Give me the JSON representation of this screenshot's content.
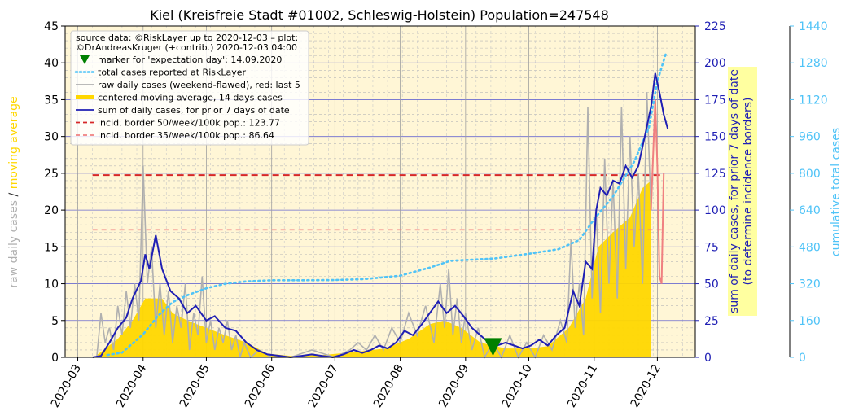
{
  "chart_data": {
    "type": "line",
    "title": "Kiel (Kreisfreie Stadt #01002, Schleswig-Holstein) Population=247548",
    "x_ticks": [
      "2020-03",
      "2020-04",
      "2020-05",
      "2020-06",
      "2020-07",
      "2020-08",
      "2020-09",
      "2020-10",
      "2020-11",
      "2020-12"
    ],
    "x_range": [
      "2020-02-24",
      "2020-12-19"
    ],
    "left_axis": {
      "range": [
        0,
        45
      ],
      "ticks": [
        "0",
        "5",
        "10",
        "15",
        "20",
        "25",
        "30",
        "35",
        "40",
        "45"
      ],
      "label_parts": [
        {
          "text": "raw daily cases",
          "color": "#b0b0b0"
        },
        {
          "text": "/",
          "color": "#333333"
        },
        {
          "text": "moving average",
          "color": "#ffd700"
        }
      ]
    },
    "right_axis": {
      "range": [
        0,
        225
      ],
      "ticks": [
        "0",
        "25",
        "50",
        "75",
        "100",
        "125",
        "150",
        "175",
        "200",
        "225"
      ],
      "label_lines": [
        "sum of daily cases, for prior 7 days of date",
        "(to determine incidence borders)"
      ],
      "color": "#1f1fb4",
      "box_color": "#ffffa0"
    },
    "far_right_axis": {
      "range": [
        0,
        1440
      ],
      "ticks": [
        "0",
        "160",
        "320",
        "480",
        "640",
        "800",
        "960",
        "1120",
        "1280",
        "1440"
      ],
      "label": "cumulative total cases",
      "color": "#4fc3f7"
    },
    "legend": {
      "placement": "top-left",
      "source_lines": [
        "source data: ©RiskLayer up to 2020-12-03 – plot:",
        "©DrAndreasKruger (+contrib.) 2020-12-03 04:00"
      ],
      "entries": [
        {
          "label": "marker for 'expectation day': 14.09.2020",
          "kind": "marker",
          "color": "#008000"
        },
        {
          "label": "total cases reported at RiskLayer",
          "kind": "dotted",
          "color": "#4fc3f7"
        },
        {
          "label": "raw daily cases (weekend-flawed), red: last 5",
          "kind": "line",
          "color": "#b0b0b0"
        },
        {
          "label": "centered moving average, 14 days cases",
          "kind": "thick",
          "color": "#ffd700"
        },
        {
          "label": "sum of daily cases, for prior 7 days of date",
          "kind": "line",
          "color": "#1f1fb4"
        },
        {
          "label": "incid. border 50/week/100k pop.: 123.77",
          "kind": "dashed",
          "color": "#d62728"
        },
        {
          "label": "incid. border 35/week/100k pop.: 86.64",
          "kind": "dashed",
          "color": "#f08080"
        }
      ]
    },
    "series": [
      {
        "name": "sum of daily cases, for prior 7 days of date",
        "axis": "right",
        "color": "#1f1fb4",
        "points": [
          [
            "2020-03-08",
            0
          ],
          [
            "2020-03-12",
            1
          ],
          [
            "2020-03-16",
            10
          ],
          [
            "2020-03-20",
            20
          ],
          [
            "2020-03-24",
            27
          ],
          [
            "2020-03-27",
            40
          ],
          [
            "2020-03-31",
            52
          ],
          [
            "2020-04-02",
            70
          ],
          [
            "2020-04-04",
            60
          ],
          [
            "2020-04-07",
            83
          ],
          [
            "2020-04-10",
            60
          ],
          [
            "2020-04-14",
            45
          ],
          [
            "2020-04-18",
            40
          ],
          [
            "2020-04-22",
            30
          ],
          [
            "2020-04-26",
            35
          ],
          [
            "2020-05-01",
            25
          ],
          [
            "2020-05-05",
            28
          ],
          [
            "2020-05-10",
            20
          ],
          [
            "2020-05-15",
            18
          ],
          [
            "2020-05-20",
            10
          ],
          [
            "2020-05-25",
            5
          ],
          [
            "2020-05-30",
            2
          ],
          [
            "2020-06-05",
            1
          ],
          [
            "2020-06-10",
            0
          ],
          [
            "2020-06-15",
            1
          ],
          [
            "2020-06-20",
            2
          ],
          [
            "2020-06-25",
            1
          ],
          [
            "2020-06-30",
            0
          ],
          [
            "2020-07-05",
            2
          ],
          [
            "2020-07-10",
            5
          ],
          [
            "2020-07-14",
            3
          ],
          [
            "2020-07-18",
            5
          ],
          [
            "2020-07-22",
            8
          ],
          [
            "2020-07-26",
            6
          ],
          [
            "2020-07-30",
            10
          ],
          [
            "2020-08-03",
            18
          ],
          [
            "2020-08-07",
            15
          ],
          [
            "2020-08-11",
            22
          ],
          [
            "2020-08-15",
            30
          ],
          [
            "2020-08-19",
            38
          ],
          [
            "2020-08-23",
            30
          ],
          [
            "2020-08-27",
            35
          ],
          [
            "2020-08-31",
            28
          ],
          [
            "2020-09-04",
            20
          ],
          [
            "2020-09-08",
            15
          ],
          [
            "2020-09-12",
            10
          ],
          [
            "2020-09-16",
            8
          ],
          [
            "2020-09-20",
            10
          ],
          [
            "2020-09-24",
            8
          ],
          [
            "2020-09-28",
            6
          ],
          [
            "2020-10-02",
            8
          ],
          [
            "2020-10-06",
            12
          ],
          [
            "2020-10-10",
            8
          ],
          [
            "2020-10-14",
            15
          ],
          [
            "2020-10-18",
            20
          ],
          [
            "2020-10-22",
            45
          ],
          [
            "2020-10-25",
            35
          ],
          [
            "2020-10-28",
            65
          ],
          [
            "2020-10-31",
            60
          ],
          [
            "2020-11-02",
            100
          ],
          [
            "2020-11-04",
            115
          ],
          [
            "2020-11-07",
            110
          ],
          [
            "2020-11-10",
            120
          ],
          [
            "2020-11-13",
            118
          ],
          [
            "2020-11-16",
            130
          ],
          [
            "2020-11-19",
            122
          ],
          [
            "2020-11-22",
            130
          ],
          [
            "2020-11-25",
            150
          ],
          [
            "2020-11-28",
            170
          ],
          [
            "2020-11-30",
            193
          ],
          [
            "2020-12-02",
            180
          ],
          [
            "2020-12-04",
            165
          ],
          [
            "2020-12-06",
            155
          ]
        ]
      },
      {
        "name": "total cases reported at RiskLayer",
        "axis": "far_right",
        "color": "#4fc3f7",
        "points": [
          [
            "2020-03-15",
            10
          ],
          [
            "2020-03-22",
            20
          ],
          [
            "2020-04-01",
            100
          ],
          [
            "2020-04-08",
            180
          ],
          [
            "2020-04-15",
            240
          ],
          [
            "2020-04-22",
            270
          ],
          [
            "2020-05-01",
            300
          ],
          [
            "2020-05-10",
            320
          ],
          [
            "2020-05-20",
            330
          ],
          [
            "2020-06-01",
            335
          ],
          [
            "2020-06-15",
            335
          ],
          [
            "2020-07-01",
            336
          ],
          [
            "2020-07-15",
            340
          ],
          [
            "2020-08-01",
            355
          ],
          [
            "2020-08-15",
            390
          ],
          [
            "2020-08-25",
            420
          ],
          [
            "2020-09-05",
            425
          ],
          [
            "2020-09-15",
            430
          ],
          [
            "2020-10-01",
            450
          ],
          [
            "2020-10-15",
            470
          ],
          [
            "2020-10-25",
            510
          ],
          [
            "2020-11-01",
            600
          ],
          [
            "2020-11-10",
            700
          ],
          [
            "2020-11-20",
            850
          ],
          [
            "2020-11-27",
            1000
          ],
          [
            "2020-12-01",
            1200
          ],
          [
            "2020-12-05",
            1320
          ]
        ]
      }
    ],
    "bars": {
      "name": "centered moving average, 14 days cases",
      "axis": "left",
      "color": "#ffd700",
      "points": [
        [
          "2020-03-10",
          0.3
        ],
        [
          "2020-03-20",
          2.5
        ],
        [
          "2020-03-27",
          5
        ],
        [
          "2020-04-02",
          8
        ],
        [
          "2020-04-10",
          8
        ],
        [
          "2020-04-15",
          6
        ],
        [
          "2020-04-22",
          5
        ],
        [
          "2020-05-01",
          4
        ],
        [
          "2020-05-10",
          3
        ],
        [
          "2020-05-20",
          2
        ],
        [
          "2020-05-30",
          0.5
        ],
        [
          "2020-06-10",
          0.2
        ],
        [
          "2020-06-25",
          0.3
        ],
        [
          "2020-07-10",
          0.7
        ],
        [
          "2020-07-25",
          1.2
        ],
        [
          "2020-08-05",
          2.5
        ],
        [
          "2020-08-15",
          4.5
        ],
        [
          "2020-08-22",
          5
        ],
        [
          "2020-08-30",
          4
        ],
        [
          "2020-09-08",
          2
        ],
        [
          "2020-09-20",
          1.2
        ],
        [
          "2020-10-01",
          1.2
        ],
        [
          "2020-10-10",
          1.5
        ],
        [
          "2020-10-20",
          4
        ],
        [
          "2020-10-28",
          8
        ],
        [
          "2020-11-03",
          15
        ],
        [
          "2020-11-10",
          17
        ],
        [
          "2020-11-18",
          19
        ],
        [
          "2020-11-24",
          23
        ],
        [
          "2020-11-28",
          24
        ]
      ]
    },
    "raw_daily": {
      "name": "raw daily cases (weekend-flawed), red: last 5",
      "axis": "left",
      "color": "#b0b0b0",
      "last_color": "#f08080",
      "points": [
        [
          "2020-03-10",
          0
        ],
        [
          "2020-03-12",
          6
        ],
        [
          "2020-03-14",
          2
        ],
        [
          "2020-03-16",
          4
        ],
        [
          "2020-03-18",
          1
        ],
        [
          "2020-03-20",
          7
        ],
        [
          "2020-03-22",
          3
        ],
        [
          "2020-03-24",
          9
        ],
        [
          "2020-03-26",
          4
        ],
        [
          "2020-03-28",
          10
        ],
        [
          "2020-03-30",
          5
        ],
        [
          "2020-04-01",
          26
        ],
        [
          "2020-04-03",
          10
        ],
        [
          "2020-04-05",
          15
        ],
        [
          "2020-04-07",
          4
        ],
        [
          "2020-04-09",
          10
        ],
        [
          "2020-04-11",
          3
        ],
        [
          "2020-04-13",
          9
        ],
        [
          "2020-04-15",
          2
        ],
        [
          "2020-04-17",
          7
        ],
        [
          "2020-04-19",
          4
        ],
        [
          "2020-04-21",
          10
        ],
        [
          "2020-04-23",
          1
        ],
        [
          "2020-04-25",
          6
        ],
        [
          "2020-04-27",
          3
        ],
        [
          "2020-04-29",
          11
        ],
        [
          "2020-05-01",
          2
        ],
        [
          "2020-05-03",
          5
        ],
        [
          "2020-05-05",
          1
        ],
        [
          "2020-05-07",
          4
        ],
        [
          "2020-05-09",
          2
        ],
        [
          "2020-05-11",
          5
        ],
        [
          "2020-05-13",
          1
        ],
        [
          "2020-05-15",
          3
        ],
        [
          "2020-05-17",
          0
        ],
        [
          "2020-05-19",
          2
        ],
        [
          "2020-05-22",
          0
        ],
        [
          "2020-05-26",
          1
        ],
        [
          "2020-06-01",
          0
        ],
        [
          "2020-06-10",
          0
        ],
        [
          "2020-06-20",
          1
        ],
        [
          "2020-07-01",
          0
        ],
        [
          "2020-07-08",
          1
        ],
        [
          "2020-07-12",
          2
        ],
        [
          "2020-07-16",
          1
        ],
        [
          "2020-07-20",
          3
        ],
        [
          "2020-07-24",
          1
        ],
        [
          "2020-07-28",
          4
        ],
        [
          "2020-08-01",
          2
        ],
        [
          "2020-08-05",
          6
        ],
        [
          "2020-08-09",
          3
        ],
        [
          "2020-08-13",
          7
        ],
        [
          "2020-08-17",
          2
        ],
        [
          "2020-08-20",
          10
        ],
        [
          "2020-08-22",
          4
        ],
        [
          "2020-08-24",
          12
        ],
        [
          "2020-08-26",
          3
        ],
        [
          "2020-08-28",
          8
        ],
        [
          "2020-08-30",
          2
        ],
        [
          "2020-09-01",
          6
        ],
        [
          "2020-09-04",
          1
        ],
        [
          "2020-09-07",
          4
        ],
        [
          "2020-09-10",
          0
        ],
        [
          "2020-09-14",
          2
        ],
        [
          "2020-09-18",
          0
        ],
        [
          "2020-09-22",
          3
        ],
        [
          "2020-09-26",
          0
        ],
        [
          "2020-09-30",
          2
        ],
        [
          "2020-10-04",
          0
        ],
        [
          "2020-10-08",
          3
        ],
        [
          "2020-10-12",
          1
        ],
        [
          "2020-10-16",
          5
        ],
        [
          "2020-10-19",
          2
        ],
        [
          "2020-10-21",
          16
        ],
        [
          "2020-10-23",
          4
        ],
        [
          "2020-10-25",
          10
        ],
        [
          "2020-10-27",
          3
        ],
        [
          "2020-10-29",
          34
        ],
        [
          "2020-10-31",
          8
        ],
        [
          "2020-11-02",
          20
        ],
        [
          "2020-11-04",
          6
        ],
        [
          "2020-11-06",
          27
        ],
        [
          "2020-11-08",
          10
        ],
        [
          "2020-11-10",
          24
        ],
        [
          "2020-11-12",
          8
        ],
        [
          "2020-11-14",
          34
        ],
        [
          "2020-11-16",
          12
        ],
        [
          "2020-11-18",
          30
        ],
        [
          "2020-11-20",
          15
        ],
        [
          "2020-11-22",
          25
        ],
        [
          "2020-11-24",
          10
        ],
        [
          "2020-11-26",
          36
        ],
        [
          "2020-11-28",
          20
        ]
      ],
      "last_points": [
        [
          "2020-11-28",
          20
        ],
        [
          "2020-11-30",
          35
        ],
        [
          "2020-12-01",
          26
        ],
        [
          "2020-12-02",
          11
        ],
        [
          "2020-12-03",
          10
        ],
        [
          "2020-12-04",
          25
        ]
      ]
    },
    "reference_lines": [
      {
        "label": "incid. border 50/week/100k pop.: 123.77",
        "value": 123.77,
        "axis": "right",
        "from": "2020-03-08",
        "to": "2020-12-04",
        "color": "#d62728"
      },
      {
        "label": "incid. border 35/week/100k pop.: 86.64",
        "value": 86.64,
        "axis": "right",
        "from": "2020-03-08",
        "to": "2020-12-04",
        "color": "#f08080"
      }
    ],
    "marker": {
      "label": "marker for 'expectation day': 14.09.2020",
      "date": "2020-09-14",
      "value": 1.5,
      "color": "#008000"
    }
  }
}
